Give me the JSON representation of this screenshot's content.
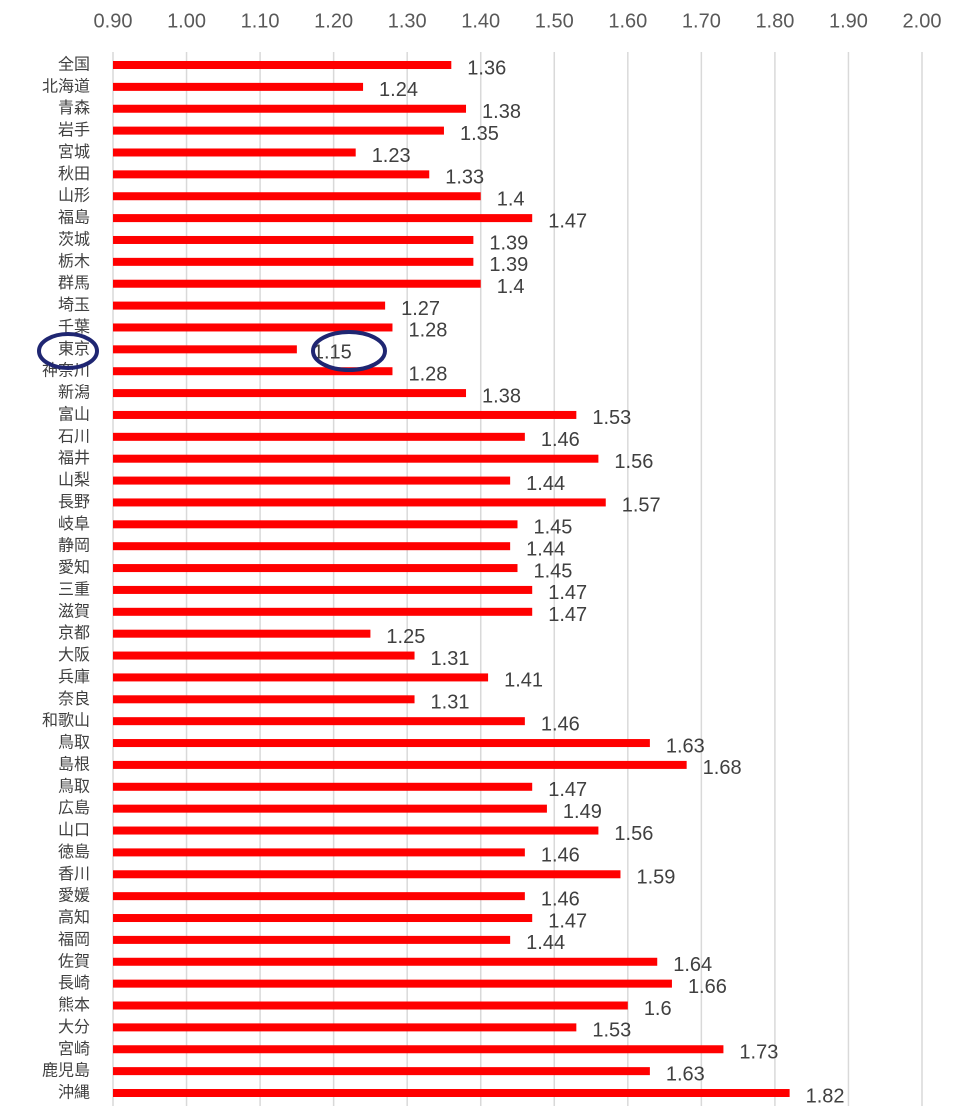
{
  "chart_data": {
    "type": "bar",
    "orientation": "horizontal",
    "categories": [
      "全国",
      "北海道",
      "青森",
      "岩手",
      "宮城",
      "秋田",
      "山形",
      "福島",
      "茨城",
      "栃木",
      "群馬",
      "埼玉",
      "千葉",
      "東京",
      "神奈川",
      "新潟",
      "富山",
      "石川",
      "福井",
      "山梨",
      "長野",
      "岐阜",
      "静岡",
      "愛知",
      "三重",
      "滋賀",
      "京都",
      "大阪",
      "兵庫",
      "奈良",
      "和歌山",
      "鳥取",
      "島根",
      "鳥取",
      "広島",
      "山口",
      "徳島",
      "香川",
      "愛媛",
      "高知",
      "福岡",
      "佐賀",
      "長崎",
      "熊本",
      "大分",
      "宮崎",
      "鹿児島",
      "沖縄"
    ],
    "values": [
      1.36,
      1.24,
      1.38,
      1.35,
      1.23,
      1.33,
      1.4,
      1.47,
      1.39,
      1.39,
      1.4,
      1.27,
      1.28,
      1.15,
      1.28,
      1.38,
      1.53,
      1.46,
      1.56,
      1.44,
      1.57,
      1.45,
      1.44,
      1.45,
      1.47,
      1.47,
      1.25,
      1.31,
      1.41,
      1.31,
      1.46,
      1.63,
      1.68,
      1.47,
      1.49,
      1.56,
      1.46,
      1.59,
      1.46,
      1.47,
      1.44,
      1.64,
      1.66,
      1.6,
      1.53,
      1.73,
      1.63,
      1.82
    ],
    "color": "#ff0000",
    "xlim": [
      0.9,
      2.0
    ],
    "xticks": [
      {
        "value": 0.9,
        "label": "0.90"
      },
      {
        "value": 1.0,
        "label": "1.00"
      },
      {
        "value": 1.1,
        "label": "1.10"
      },
      {
        "value": 1.2,
        "label": "1.20"
      },
      {
        "value": 1.3,
        "label": "1.30"
      },
      {
        "value": 1.4,
        "label": "1.40"
      },
      {
        "value": 1.5,
        "label": "1.50"
      },
      {
        "value": 1.6,
        "label": "1.60"
      },
      {
        "value": 1.7,
        "label": "1.70"
      },
      {
        "value": 1.8,
        "label": "1.80"
      },
      {
        "value": 1.9,
        "label": "1.90"
      },
      {
        "value": 2.0,
        "label": "2.00"
      }
    ],
    "grid": true
  }
}
